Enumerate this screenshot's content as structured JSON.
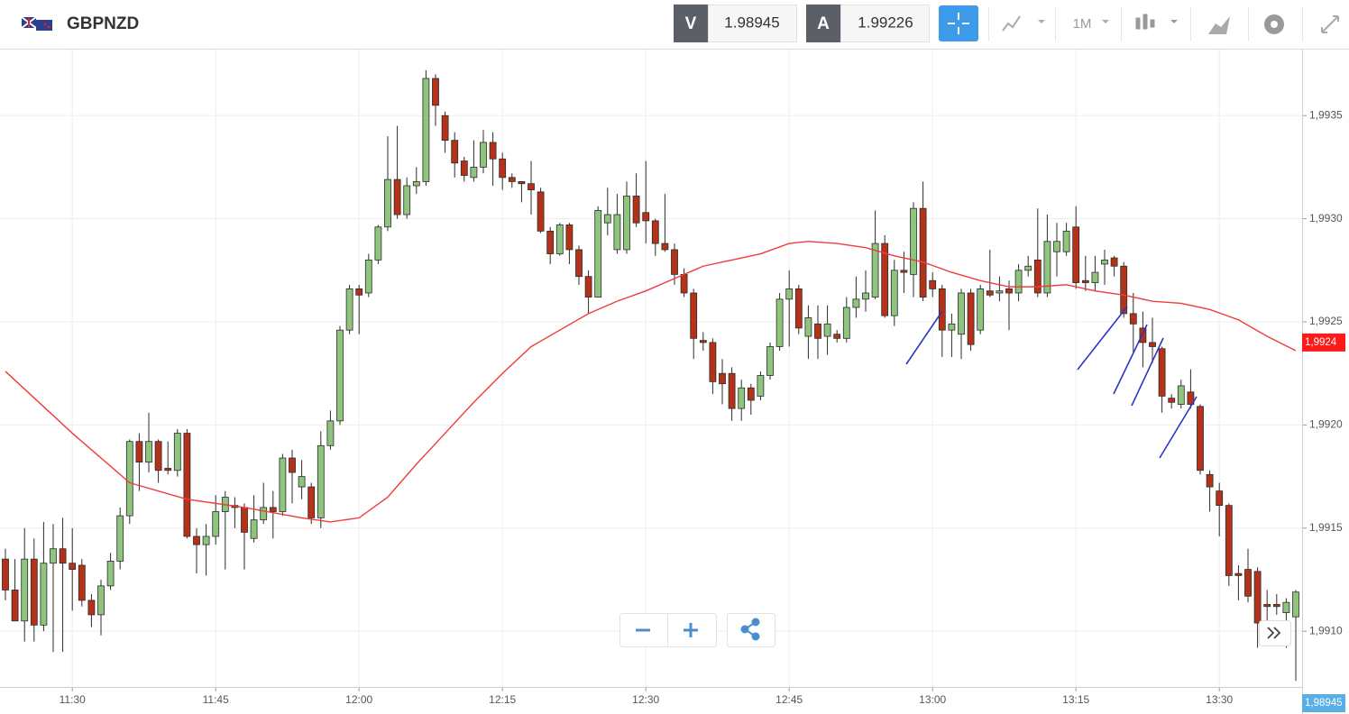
{
  "header": {
    "symbol": "GBPNZD",
    "bid_label": "V",
    "bid": "1.98945",
    "ask_label": "A",
    "ask": "1.99226",
    "timeframe": "1M"
  },
  "chart_data": {
    "type": "candlestick",
    "x": [
      "11:23",
      "11:24",
      "11:25",
      "11:26",
      "11:27",
      "11:28",
      "11:29",
      "11:30",
      "11:31",
      "11:32",
      "11:33",
      "11:34",
      "11:35",
      "11:36",
      "11:37",
      "11:38",
      "11:39",
      "11:40",
      "11:41",
      "11:42",
      "11:43",
      "11:44",
      "11:45",
      "11:46",
      "11:47",
      "11:48",
      "11:49",
      "11:50",
      "11:51",
      "11:52",
      "11:53",
      "11:54",
      "11:55",
      "11:56",
      "11:57",
      "11:58",
      "11:59",
      "12:00",
      "12:01",
      "12:02",
      "12:03",
      "12:04",
      "12:05",
      "12:06",
      "12:07",
      "12:08",
      "12:09",
      "12:10",
      "12:11",
      "12:12",
      "12:13",
      "12:14",
      "12:15",
      "12:16",
      "12:17",
      "12:18",
      "12:19",
      "12:20",
      "12:21",
      "12:22",
      "12:23",
      "12:24",
      "12:25",
      "12:26",
      "12:27",
      "12:28",
      "12:29",
      "12:30",
      "12:31",
      "12:32",
      "12:33",
      "12:34",
      "12:35",
      "12:36",
      "12:37",
      "12:38",
      "12:39",
      "12:40",
      "12:41",
      "12:42",
      "12:43",
      "12:44",
      "12:45",
      "12:46",
      "12:47",
      "12:48",
      "12:49",
      "12:50",
      "12:51",
      "12:52",
      "12:53",
      "12:54",
      "12:55",
      "12:56",
      "12:57",
      "12:58",
      "12:59",
      "13:00",
      "13:01",
      "13:02",
      "13:03",
      "13:04",
      "13:05",
      "13:06",
      "13:07",
      "13:08",
      "13:09",
      "13:10",
      "13:11",
      "13:12",
      "13:13",
      "13:14",
      "13:15",
      "13:16",
      "13:17",
      "13:18",
      "13:19",
      "13:20",
      "13:21",
      "13:22",
      "13:23",
      "13:24",
      "13:25",
      "13:26",
      "13:27",
      "13:28",
      "13:29",
      "13:30",
      "13:31",
      "13:32",
      "13:33",
      "13:34",
      "13:35",
      "13:36",
      "13:37",
      "13:38"
    ],
    "open": [
      1.99135,
      1.9912,
      1.99105,
      1.99135,
      1.99103,
      1.99133,
      1.9914,
      1.99133,
      1.99132,
      1.99115,
      1.99108,
      1.99122,
      1.99134,
      1.99156,
      1.99192,
      1.99182,
      1.99192,
      1.99179,
      1.99178,
      1.99196,
      1.99146,
      1.99142,
      1.99146,
      1.99158,
      1.99161,
      1.9916,
      1.99145,
      1.99154,
      1.9916,
      1.99158,
      1.99184,
      1.9917,
      1.9917,
      1.99155,
      1.9919,
      1.99202,
      1.99246,
      1.99266,
      1.99264,
      1.9928,
      1.99296,
      1.99319,
      1.99302,
      1.99316,
      1.99318,
      1.99368,
      1.9935,
      1.99338,
      1.99328,
      1.9932,
      1.99325,
      1.99337,
      1.99329,
      1.9932,
      1.99318,
      1.99317,
      1.99313,
      1.99294,
      1.99283,
      1.99297,
      1.99285,
      1.99272,
      1.99262,
      1.99298,
      1.99285,
      1.99285,
      1.99311,
      1.99303,
      1.99299,
      1.99288,
      1.99285,
      1.99273,
      1.99264,
      1.99241,
      1.9924,
      1.99225,
      1.99225,
      1.99208,
      1.99218,
      1.99214,
      1.99224,
      1.99238,
      1.99261,
      1.99266,
      1.99243,
      1.99249,
      1.99243,
      1.99244,
      1.99242,
      1.99257,
      1.99261,
      1.99262,
      1.99288,
      1.99253,
      1.99275,
      1.99273,
      1.99305,
      1.9927,
      1.99266,
      1.99246,
      1.99244,
      1.99264,
      1.99246,
      1.99265,
      1.99264,
      1.99266,
      1.99264,
      1.99275,
      1.9928,
      1.99264,
      1.99284,
      1.99284,
      1.99296,
      1.9927,
      1.99269,
      1.99278,
      1.99281,
      1.99277,
      1.99254,
      1.99247,
      1.9924,
      1.99237,
      1.99213,
      1.9921,
      1.99216,
      1.99209,
      1.99176,
      1.99168,
      1.99161,
      1.99128,
      1.9913,
      1.99129,
      1.99113,
      1.99113,
      1.99109,
      1.99107
    ],
    "high": [
      1.9914,
      1.99135,
      1.9915,
      1.99145,
      1.99153,
      1.99152,
      1.99155,
      1.9915,
      1.99135,
      1.99118,
      1.99125,
      1.99138,
      1.9916,
      1.99193,
      1.99196,
      1.99206,
      1.99193,
      1.99192,
      1.99198,
      1.99198,
      1.9915,
      1.99152,
      1.99166,
      1.99168,
      1.99165,
      1.99162,
      1.99166,
      1.99172,
      1.99168,
      1.99186,
      1.99188,
      1.99183,
      1.99172,
      1.99197,
      1.99207,
      1.99248,
      1.99268,
      1.99268,
      1.99283,
      1.99297,
      1.9934,
      1.99345,
      1.9932,
      1.99325,
      1.99372,
      1.9937,
      1.99352,
      1.99342,
      1.9933,
      1.99338,
      1.99343,
      1.99342,
      1.99332,
      1.99322,
      1.99318,
      1.99328,
      1.99315,
      1.99296,
      1.99298,
      1.99298,
      1.99287,
      1.99275,
      1.99306,
      1.99315,
      1.99312,
      1.99318,
      1.99322,
      1.99328,
      1.993,
      1.99312,
      1.99288,
      1.99276,
      1.99266,
      1.99245,
      1.99242,
      1.99232,
      1.99228,
      1.99222,
      1.9922,
      1.99226,
      1.9924,
      1.99264,
      1.99275,
      1.99268,
      1.99258,
      1.99258,
      1.99258,
      1.99246,
      1.99262,
      1.99272,
      1.99275,
      1.99304,
      1.99292,
      1.9928,
      1.99284,
      1.99308,
      1.99318,
      1.99274,
      1.99268,
      1.99254,
      1.99266,
      1.99266,
      1.99268,
      1.99285,
      1.99272,
      1.9927,
      1.99278,
      1.99282,
      1.99305,
      1.99302,
      1.99298,
      1.99298,
      1.99306,
      1.99282,
      1.99282,
      1.99285,
      1.99282,
      1.99279,
      1.99264,
      1.99255,
      1.99252,
      1.99238,
      1.99215,
      1.99222,
      1.99227,
      1.9921,
      1.99178,
      1.99172,
      1.99162,
      1.99132,
      1.9914,
      1.99131,
      1.9912,
      1.99118,
      1.99116,
      1.9912
    ],
    "low": [
      1.99115,
      1.99105,
      1.99095,
      1.99095,
      1.991,
      1.9909,
      1.9909,
      1.9911,
      1.99112,
      1.99102,
      1.99098,
      1.9912,
      1.9913,
      1.99152,
      1.99168,
      1.99177,
      1.99172,
      1.99176,
      1.99175,
      1.99145,
      1.99128,
      1.99127,
      1.99142,
      1.9913,
      1.9915,
      1.9913,
      1.99143,
      1.99152,
      1.99145,
      1.99156,
      1.99162,
      1.99164,
      1.99152,
      1.9915,
      1.99188,
      1.992,
      1.99244,
      1.99244,
      1.99262,
      1.99278,
      1.99294,
      1.993,
      1.993,
      1.99312,
      1.99316,
      1.99345,
      1.99332,
      1.9932,
      1.99318,
      1.99318,
      1.99322,
      1.99316,
      1.99314,
      1.99315,
      1.99308,
      1.99302,
      1.99293,
      1.99278,
      1.99282,
      1.99278,
      1.99268,
      1.99254,
      1.99262,
      1.99292,
      1.99283,
      1.99283,
      1.99296,
      1.99288,
      1.99282,
      1.99284,
      1.99268,
      1.99262,
      1.99232,
      1.99236,
      1.99215,
      1.9921,
      1.99202,
      1.99202,
      1.99205,
      1.99212,
      1.99222,
      1.99236,
      1.99238,
      1.99244,
      1.99232,
      1.99232,
      1.99234,
      1.9924,
      1.9924,
      1.99252,
      1.99255,
      1.99261,
      1.99252,
      1.99248,
      1.99264,
      1.99262,
      1.9926,
      1.99262,
      1.99233,
      1.99233,
      1.99232,
      1.99236,
      1.99244,
      1.99262,
      1.9926,
      1.99246,
      1.9926,
      1.99272,
      1.99262,
      1.99262,
      1.99272,
      1.99282,
      1.99266,
      1.99265,
      1.99265,
      1.99268,
      1.99272,
      1.99252,
      1.99235,
      1.99228,
      1.9923,
      1.99206,
      1.99208,
      1.99208,
      1.99208,
      1.99176,
      1.99158,
      1.99146,
      1.99122,
      1.99115,
      1.99114,
      1.99092,
      1.99105,
      1.99108,
      1.99092,
      1.99076
    ],
    "close": [
      1.9912,
      1.99105,
      1.99135,
      1.99103,
      1.99133,
      1.9914,
      1.99133,
      1.9913,
      1.99115,
      1.99108,
      1.99122,
      1.99134,
      1.99156,
      1.99192,
      1.99182,
      1.99192,
      1.99178,
      1.99178,
      1.99196,
      1.99146,
      1.99142,
      1.99146,
      1.99158,
      1.99165,
      1.9916,
      1.99148,
      1.99154,
      1.9916,
      1.99158,
      1.99184,
      1.99177,
      1.99175,
      1.99155,
      1.9919,
      1.99202,
      1.99246,
      1.99266,
      1.99263,
      1.9928,
      1.99296,
      1.99319,
      1.99302,
      1.99316,
      1.99318,
      1.99368,
      1.99355,
      1.99338,
      1.99327,
      1.99321,
      1.99325,
      1.99337,
      1.99329,
      1.9932,
      1.99318,
      1.99317,
      1.99314,
      1.99294,
      1.99283,
      1.99297,
      1.99285,
      1.99272,
      1.99262,
      1.99304,
      1.99302,
      1.99302,
      1.99311,
      1.99298,
      1.99299,
      1.99288,
      1.99285,
      1.99273,
      1.99264,
      1.99242,
      1.9924,
      1.99221,
      1.9922,
      1.99208,
      1.99218,
      1.99212,
      1.99224,
      1.99238,
      1.99261,
      1.99266,
      1.99247,
      1.99252,
      1.99242,
      1.99249,
      1.99242,
      1.99257,
      1.99261,
      1.99264,
      1.99288,
      1.99253,
      1.99275,
      1.99274,
      1.99305,
      1.99262,
      1.99266,
      1.99246,
      1.99249,
      1.99264,
      1.99239,
      1.99266,
      1.99263,
      1.99265,
      1.99264,
      1.99275,
      1.99277,
      1.99264,
      1.99289,
      1.99289,
      1.99294,
      1.99269,
      1.99269,
      1.99274,
      1.9928,
      1.99277,
      1.99254,
      1.99249,
      1.9924,
      1.99238,
      1.99214,
      1.99211,
      1.99219,
      1.9921,
      1.99178,
      1.9917,
      1.99161,
      1.99127,
      1.99127,
      1.99117,
      1.99104,
      1.99112,
      1.99112,
      1.99114,
      1.99119
    ],
    "up_color": "#8fc47f",
    "down_color": "#b5321a",
    "outline_color": "#2b2b2b",
    "overlay": {
      "type": "line",
      "color": "#f03c3c",
      "x": [
        "11:23",
        "11:30",
        "11:36",
        "11:42",
        "11:48",
        "11:54",
        "11:57",
        "12:00",
        "12:03",
        "12:06",
        "12:09",
        "12:12",
        "12:15",
        "12:18",
        "12:21",
        "12:24",
        "12:27",
        "12:30",
        "12:33",
        "12:36",
        "12:39",
        "12:42",
        "12:45",
        "12:47",
        "12:50",
        "12:53",
        "12:56",
        "12:59",
        "13:02",
        "13:05",
        "13:08",
        "13:11",
        "13:14",
        "13:17",
        "13:20",
        "13:23",
        "13:26",
        "13:29",
        "13:32",
        "13:35",
        "13:38"
      ],
      "values": [
        1.99226,
        1.99196,
        1.99172,
        1.99164,
        1.9916,
        1.99155,
        1.99153,
        1.99155,
        1.99165,
        1.99181,
        1.99196,
        1.99211,
        1.99225,
        1.99238,
        1.99246,
        1.99254,
        1.9926,
        1.99265,
        1.99271,
        1.99277,
        1.9928,
        1.99283,
        1.99288,
        1.99289,
        1.99288,
        1.99286,
        1.99282,
        1.99279,
        1.99274,
        1.9927,
        1.99267,
        1.99267,
        1.99268,
        1.99265,
        1.99263,
        1.9926,
        1.99259,
        1.99256,
        1.99251,
        1.99243,
        1.99236
      ]
    },
    "ylim": [
      1.99073,
      1.99382
    ],
    "yticks": [
      {
        "value": 1.9935,
        "label": "1,9935"
      },
      {
        "value": 1.993,
        "label": "1,9930"
      },
      {
        "value": 1.9925,
        "label": "1,9925"
      },
      {
        "value": 1.992,
        "label": "1,9920"
      },
      {
        "value": 1.9915,
        "label": "1,9915"
      },
      {
        "value": 1.991,
        "label": "1,9910"
      }
    ],
    "xticks": [
      "11:30",
      "11:45",
      "12:00",
      "12:15",
      "12:30",
      "12:45",
      "13:00",
      "13:15",
      "13:30"
    ],
    "grid": true,
    "price_labels": [
      {
        "value": 1.9924,
        "label": "1,9924",
        "color": "#ff1a1a"
      },
      {
        "value": 1.98945,
        "label": "1,98945",
        "color": "#5aaee6"
      }
    ]
  }
}
